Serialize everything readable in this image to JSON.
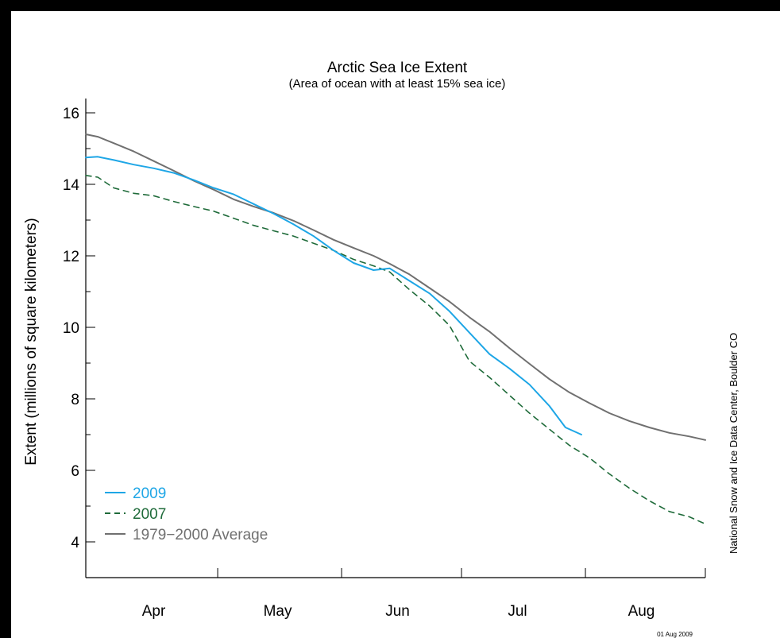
{
  "chart_data": {
    "type": "line",
    "title": "Arctic Sea Ice Extent",
    "subtitle": "(Area of ocean with at least 15% sea ice)",
    "ylabel": "Extent (millions of square kilometers)",
    "xlabel": "",
    "ylim": [
      3,
      16.4
    ],
    "yticks": [
      4,
      6,
      8,
      10,
      12,
      14,
      16
    ],
    "xlim": [
      "2009-03-29",
      "2009-08-31"
    ],
    "month_boundaries": [
      "2009-05-01",
      "2009-06-01",
      "2009-07-01",
      "2009-08-01",
      "2009-08-31"
    ],
    "month_labels": [
      {
        "label": "Apr",
        "date": "2009-04-15"
      },
      {
        "label": "May",
        "date": "2009-05-16"
      },
      {
        "label": "Jun",
        "date": "2009-06-15"
      },
      {
        "label": "Jul",
        "date": "2009-07-15"
      },
      {
        "label": "Aug",
        "date": "2009-08-15"
      }
    ],
    "grid": false,
    "legend_position": "bottom-left",
    "source_note": "National Snow and Ice Data Center, Boulder CO",
    "date_stamp": "01 Aug 2009",
    "series": [
      {
        "name": "2009",
        "color": "#1ea6e6",
        "style": "solid",
        "points": [
          [
            "2009-03-29",
            14.75
          ],
          [
            "2009-04-01",
            14.77
          ],
          [
            "2009-04-05",
            14.68
          ],
          [
            "2009-04-10",
            14.55
          ],
          [
            "2009-04-15",
            14.45
          ],
          [
            "2009-04-20",
            14.32
          ],
          [
            "2009-04-25",
            14.12
          ],
          [
            "2009-04-30",
            13.9
          ],
          [
            "2009-05-05",
            13.72
          ],
          [
            "2009-05-10",
            13.45
          ],
          [
            "2009-05-15",
            13.18
          ],
          [
            "2009-05-20",
            12.88
          ],
          [
            "2009-05-25",
            12.55
          ],
          [
            "2009-05-30",
            12.15
          ],
          [
            "2009-06-04",
            11.8
          ],
          [
            "2009-06-09",
            11.6
          ],
          [
            "2009-06-13",
            11.65
          ],
          [
            "2009-06-18",
            11.3
          ],
          [
            "2009-06-23",
            10.95
          ],
          [
            "2009-06-28",
            10.45
          ],
          [
            "2009-07-03",
            9.85
          ],
          [
            "2009-07-08",
            9.25
          ],
          [
            "2009-07-13",
            8.85
          ],
          [
            "2009-07-18",
            8.4
          ],
          [
            "2009-07-23",
            7.8
          ],
          [
            "2009-07-27",
            7.2
          ],
          [
            "2009-07-31",
            7.0
          ]
        ]
      },
      {
        "name": "2007",
        "color": "#1f6b3a",
        "style": "dashed",
        "points": [
          [
            "2009-03-29",
            14.25
          ],
          [
            "2009-04-01",
            14.2
          ],
          [
            "2009-04-05",
            13.9
          ],
          [
            "2009-04-10",
            13.75
          ],
          [
            "2009-04-15",
            13.68
          ],
          [
            "2009-04-20",
            13.52
          ],
          [
            "2009-04-25",
            13.38
          ],
          [
            "2009-04-30",
            13.25
          ],
          [
            "2009-05-05",
            13.05
          ],
          [
            "2009-05-10",
            12.85
          ],
          [
            "2009-05-15",
            12.7
          ],
          [
            "2009-05-20",
            12.55
          ],
          [
            "2009-05-25",
            12.35
          ],
          [
            "2009-05-30",
            12.15
          ],
          [
            "2009-06-04",
            11.9
          ],
          [
            "2009-06-09",
            11.72
          ],
          [
            "2009-06-13",
            11.55
          ],
          [
            "2009-06-18",
            11.05
          ],
          [
            "2009-06-23",
            10.6
          ],
          [
            "2009-06-28",
            10.05
          ],
          [
            "2009-07-03",
            9.05
          ],
          [
            "2009-07-08",
            8.6
          ],
          [
            "2009-07-13",
            8.1
          ],
          [
            "2009-07-18",
            7.6
          ],
          [
            "2009-07-23",
            7.15
          ],
          [
            "2009-07-28",
            6.7
          ],
          [
            "2009-08-02",
            6.35
          ],
          [
            "2009-08-07",
            5.9
          ],
          [
            "2009-08-12",
            5.5
          ],
          [
            "2009-08-17",
            5.15
          ],
          [
            "2009-08-22",
            4.85
          ],
          [
            "2009-08-27",
            4.7
          ],
          [
            "2009-08-31",
            4.5
          ]
        ]
      },
      {
        "name": "1979−2000 Average",
        "color": "#707070",
        "style": "solid",
        "points": [
          [
            "2009-03-29",
            15.4
          ],
          [
            "2009-04-01",
            15.33
          ],
          [
            "2009-04-05",
            15.15
          ],
          [
            "2009-04-10",
            14.92
          ],
          [
            "2009-04-15",
            14.65
          ],
          [
            "2009-04-20",
            14.38
          ],
          [
            "2009-04-25",
            14.1
          ],
          [
            "2009-04-30",
            13.85
          ],
          [
            "2009-05-05",
            13.58
          ],
          [
            "2009-05-10",
            13.38
          ],
          [
            "2009-05-15",
            13.2
          ],
          [
            "2009-05-20",
            12.98
          ],
          [
            "2009-05-25",
            12.72
          ],
          [
            "2009-05-30",
            12.45
          ],
          [
            "2009-06-04",
            12.22
          ],
          [
            "2009-06-09",
            12.0
          ],
          [
            "2009-06-13",
            11.78
          ],
          [
            "2009-06-18",
            11.48
          ],
          [
            "2009-06-23",
            11.1
          ],
          [
            "2009-06-28",
            10.72
          ],
          [
            "2009-07-03",
            10.28
          ],
          [
            "2009-07-08",
            9.88
          ],
          [
            "2009-07-13",
            9.42
          ],
          [
            "2009-07-18",
            8.98
          ],
          [
            "2009-07-23",
            8.55
          ],
          [
            "2009-07-28",
            8.18
          ],
          [
            "2009-08-02",
            7.88
          ],
          [
            "2009-08-07",
            7.6
          ],
          [
            "2009-08-12",
            7.38
          ],
          [
            "2009-08-17",
            7.2
          ],
          [
            "2009-08-22",
            7.05
          ],
          [
            "2009-08-27",
            6.95
          ],
          [
            "2009-08-31",
            6.85
          ]
        ]
      }
    ]
  }
}
